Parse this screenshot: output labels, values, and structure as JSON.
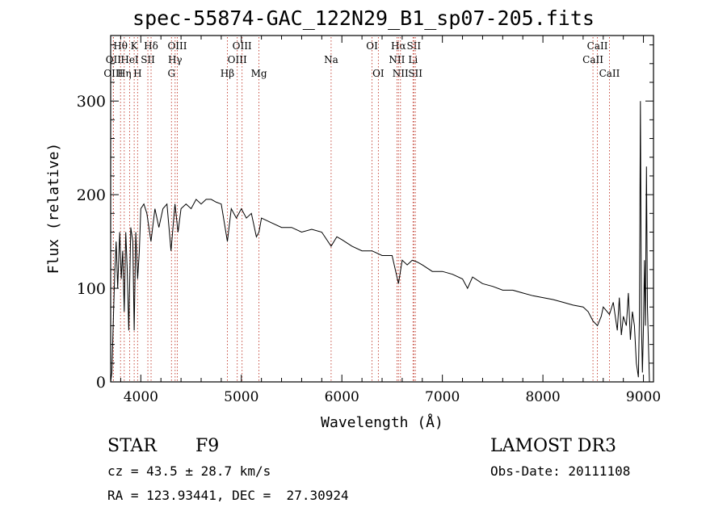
{
  "chart_data": {
    "type": "line",
    "title": "spec-55874-GAC_122N29_B1_sp07-205.fits",
    "xlabel": "Wavelength (Å)",
    "ylabel": "Flux (relative)",
    "xlim": [
      3700,
      9100
    ],
    "ylim": [
      0,
      370
    ],
    "x_ticks": [
      4000,
      5000,
      6000,
      7000,
      8000,
      9000
    ],
    "x_tick_labels": [
      "4000",
      "5000",
      "6000",
      "7000",
      "8000",
      "9000"
    ],
    "y_ticks": [
      0,
      100,
      200,
      300
    ],
    "y_tick_labels": [
      "0",
      "100",
      "200",
      "300"
    ],
    "series": [
      {
        "name": "flux",
        "x": [
          3700,
          3712,
          3725,
          3740,
          3755,
          3770,
          3790,
          3805,
          3820,
          3835,
          3850,
          3865,
          3880,
          3900,
          3920,
          3934,
          3950,
          3968,
          3985,
          4000,
          4030,
          4060,
          4101,
          4140,
          4180,
          4220,
          4260,
          4300,
          4340,
          4370,
          4400,
          4450,
          4500,
          4550,
          4600,
          4650,
          4700,
          4750,
          4800,
          4861,
          4900,
          4950,
          5000,
          5050,
          5100,
          5150,
          5175,
          5200,
          5300,
          5400,
          5500,
          5600,
          5700,
          5800,
          5893,
          5950,
          6000,
          6100,
          6200,
          6300,
          6400,
          6500,
          6563,
          6600,
          6650,
          6700,
          6750,
          6800,
          6900,
          7000,
          7100,
          7200,
          7250,
          7300,
          7400,
          7500,
          7600,
          7700,
          7800,
          7900,
          8000,
          8100,
          8200,
          8300,
          8400,
          8450,
          8498,
          8542,
          8580,
          8600,
          8662,
          8700,
          8740,
          8760,
          8780,
          8800,
          8830,
          8850,
          8870,
          8890,
          8910,
          8930,
          8950,
          8960,
          8970,
          8980,
          8990,
          9000,
          9010,
          9020,
          9030,
          9040,
          9060
        ],
        "y": [
          0,
          10,
          60,
          115,
          150,
          100,
          160,
          110,
          140,
          75,
          160,
          120,
          55,
          165,
          150,
          55,
          160,
          110,
          140,
          185,
          190,
          180,
          150,
          185,
          165,
          185,
          190,
          140,
          190,
          160,
          185,
          190,
          185,
          195,
          190,
          195,
          195,
          192,
          190,
          150,
          185,
          175,
          185,
          175,
          180,
          155,
          160,
          175,
          170,
          165,
          165,
          160,
          163,
          160,
          145,
          155,
          152,
          145,
          140,
          140,
          135,
          135,
          105,
          130,
          125,
          130,
          128,
          125,
          118,
          118,
          115,
          110,
          100,
          112,
          105,
          102,
          98,
          98,
          95,
          92,
          90,
          88,
          85,
          82,
          80,
          75,
          65,
          60,
          70,
          80,
          72,
          85,
          55,
          90,
          50,
          70,
          60,
          95,
          45,
          75,
          60,
          20,
          5,
          70,
          300,
          60,
          10,
          60,
          130,
          60,
          230,
          80,
          0
        ]
      }
    ],
    "spectral_lines": [
      {
        "name": "Hθ",
        "wavelength": 3798,
        "row": 1
      },
      {
        "name": "OII",
        "wavelength": 3727,
        "row": 2
      },
      {
        "name": "OIII",
        "wavelength": 3727,
        "row": 3
      },
      {
        "name": "K",
        "wavelength": 3934,
        "row": 1
      },
      {
        "name": "HeI",
        "wavelength": 3889,
        "row": 2
      },
      {
        "name": "Hη",
        "wavelength": 3835,
        "row": 3
      },
      {
        "name": "H",
        "wavelength": 3968,
        "row": 3
      },
      {
        "name": "SII",
        "wavelength": 4070,
        "row": 2
      },
      {
        "name": "Hδ",
        "wavelength": 4102,
        "row": 1
      },
      {
        "name": "OIII",
        "wavelength": 4363,
        "row": 1
      },
      {
        "name": "Hγ",
        "wavelength": 4341,
        "row": 2
      },
      {
        "name": "G",
        "wavelength": 4305,
        "row": 3
      },
      {
        "name": "Hβ",
        "wavelength": 4861,
        "row": 3
      },
      {
        "name": "OIII",
        "wavelength": 4959,
        "row": 2
      },
      {
        "name": "OIII",
        "wavelength": 5007,
        "row": 1
      },
      {
        "name": "Mg",
        "wavelength": 5175,
        "row": 3
      },
      {
        "name": "Na",
        "wavelength": 5893,
        "row": 2
      },
      {
        "name": "OI",
        "wavelength": 6300,
        "row": 1
      },
      {
        "name": "OI",
        "wavelength": 6363,
        "row": 3
      },
      {
        "name": "Hα",
        "wavelength": 6563,
        "row": 1
      },
      {
        "name": "NII",
        "wavelength": 6548,
        "row": 2
      },
      {
        "name": "NII",
        "wavelength": 6583,
        "row": 3
      },
      {
        "name": "SII",
        "wavelength": 6716,
        "row": 1
      },
      {
        "name": "Li",
        "wavelength": 6708,
        "row": 2
      },
      {
        "name": "SII",
        "wavelength": 6731,
        "row": 3
      },
      {
        "name": "CaII",
        "wavelength": 8542,
        "row": 1
      },
      {
        "name": "CaII",
        "wavelength": 8498,
        "row": 2
      },
      {
        "name": "CaII",
        "wavelength": 8662,
        "row": 3
      }
    ]
  },
  "info": {
    "class_label": "STAR",
    "subclass": "F9",
    "survey": "LAMOST DR3",
    "cz": "cz = 43.5 ± 28.7 km/s",
    "obs_date": "Obs-Date: 20111108",
    "coords": "RA = 123.93441, DEC =  27.30924"
  }
}
